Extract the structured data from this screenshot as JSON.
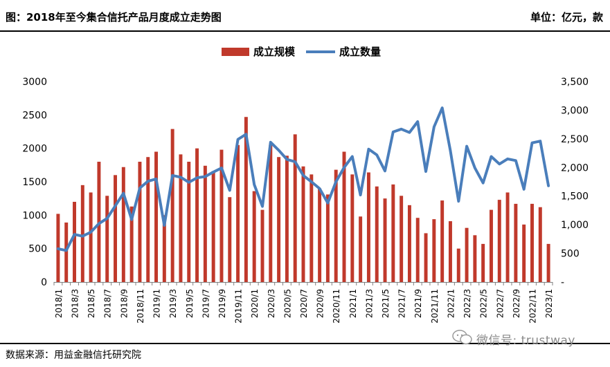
{
  "header": {
    "title": "图：2018年至今集合信托产品月度成立走势图",
    "unit": "单位：亿元，款"
  },
  "footer": {
    "source": "数据来源：用益金融信托研究院",
    "watermark": "微信号: trustway"
  },
  "colors": {
    "bar": "#c0392b",
    "line": "#4a7ebb"
  },
  "chart_data": {
    "type": "bar",
    "title": "",
    "legend_position": "top-center",
    "categories": [
      "2018/1",
      "2018/2",
      "2018/3",
      "2018/4",
      "2018/5",
      "2018/6",
      "2018/7",
      "2018/8",
      "2018/9",
      "2018/10",
      "2018/11",
      "2018/12",
      "2019/1",
      "2019/2",
      "2019/3",
      "2019/4",
      "2019/5",
      "2019/6",
      "2019/7",
      "2019/8",
      "2019/9",
      "2019/10",
      "2019/11",
      "2019/12",
      "2020/1",
      "2020/2",
      "2020/3",
      "2020/4",
      "2020/5",
      "2020/6",
      "2020/7",
      "2020/8",
      "2020/9",
      "2020/10",
      "2020/11",
      "2020/12",
      "2021/1",
      "2021/2",
      "2021/3",
      "2021/4",
      "2021/5",
      "2021/6",
      "2021/7",
      "2021/8",
      "2021/9",
      "2021/10",
      "2021/11",
      "2021/12",
      "2022/1",
      "2022/2",
      "2022/3",
      "2022/4",
      "2022/5",
      "2022/6",
      "2022/7",
      "2022/8",
      "2022/9",
      "2022/10",
      "2022/11",
      "2022/12",
      "2023/1"
    ],
    "x_tick_labels": [
      "2018/1",
      "2018/3",
      "2018/5",
      "2018/7",
      "2018/9",
      "2018/11",
      "2019/1",
      "2019/3",
      "2019/5",
      "2019/7",
      "2019/9",
      "2019/11",
      "2020/1",
      "2020/3",
      "2020/5",
      "2020/7",
      "2020/9",
      "2020/11",
      "2021/1",
      "2021/3",
      "2021/5",
      "2021/7",
      "2021/9",
      "2021/11",
      "2022/1",
      "2022/3",
      "2022/5",
      "2022/7",
      "2022/9",
      "2022/11",
      "2023/1"
    ],
    "series": [
      {
        "name": "成立规模",
        "type": "bar",
        "axis": "left",
        "values": [
          1020,
          890,
          1200,
          1450,
          1340,
          1800,
          1290,
          1600,
          1720,
          1130,
          1800,
          1870,
          1950,
          1000,
          2290,
          1910,
          1800,
          2000,
          1740,
          1660,
          1980,
          1270,
          2050,
          2470,
          1360,
          1080,
          2050,
          1870,
          1890,
          2210,
          1730,
          1610,
          1400,
          1310,
          1680,
          1950,
          1610,
          980,
          1640,
          1430,
          1250,
          1460,
          1290,
          1150,
          960,
          730,
          940,
          1220,
          910,
          500,
          810,
          700,
          570,
          1080,
          1230,
          1340,
          1170,
          860,
          1170,
          1120,
          570
        ]
      },
      {
        "name": "成立数量",
        "type": "line",
        "axis": "right",
        "values": [
          580,
          550,
          830,
          800,
          870,
          1020,
          1110,
          1330,
          1550,
          1090,
          1640,
          1760,
          1800,
          990,
          1860,
          1830,
          1740,
          1820,
          1840,
          1920,
          1990,
          1600,
          2490,
          2580,
          1700,
          1320,
          2440,
          2300,
          2140,
          2100,
          1860,
          1750,
          1630,
          1380,
          1750,
          2000,
          2190,
          1520,
          2320,
          2220,
          1940,
          2620,
          2670,
          2610,
          2800,
          1930,
          2710,
          3040,
          2290,
          1410,
          2370,
          1990,
          1730,
          2190,
          2060,
          2150,
          2120,
          1620,
          2430,
          2460,
          1680
        ]
      }
    ],
    "y_left": {
      "min": 0,
      "max": 3000,
      "ticks": [
        "0",
        "500",
        "1000",
        "1500",
        "2000",
        "2500",
        "3000"
      ]
    },
    "y_right": {
      "min": 0,
      "max": 3500,
      "ticks": [
        "-",
        "500",
        "1,000",
        "1,500",
        "2,000",
        "2,500",
        "3,000",
        "3,500"
      ]
    }
  }
}
